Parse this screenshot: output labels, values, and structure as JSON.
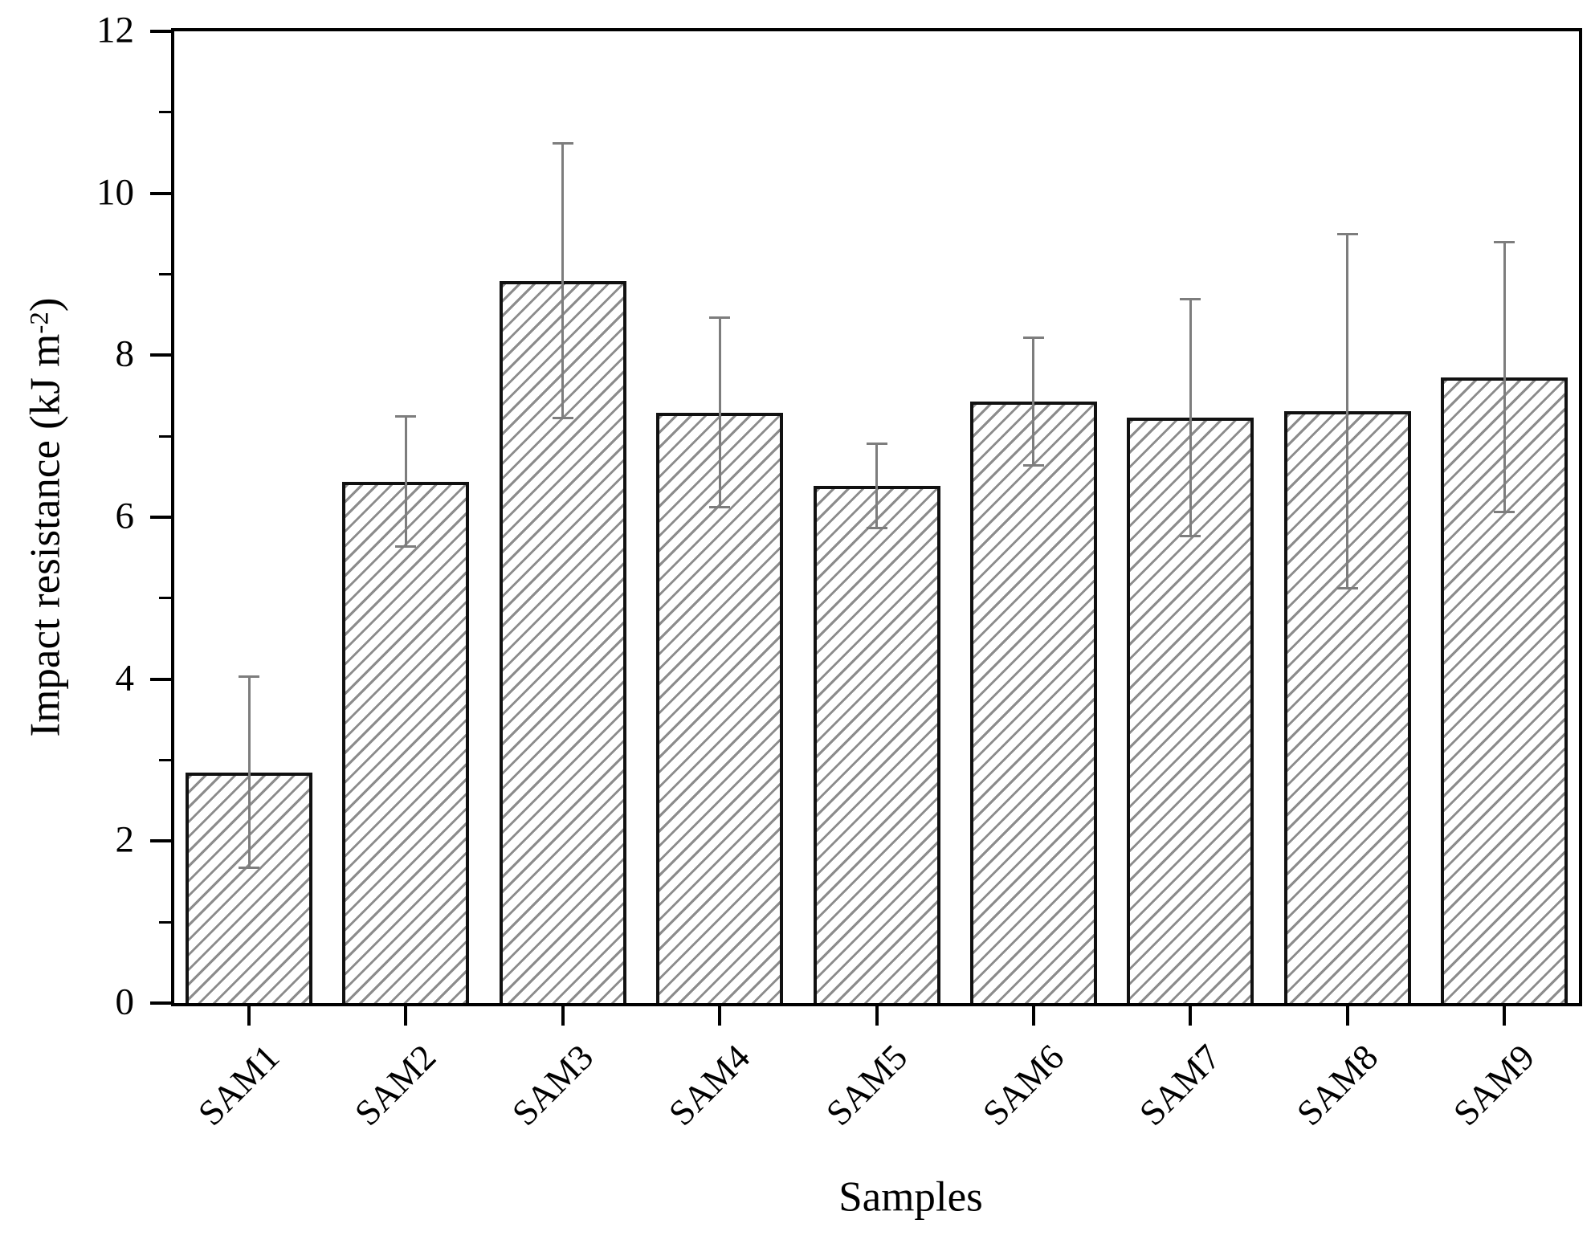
{
  "figure": {
    "background_color": "#ffffff",
    "plot_border_color": "#000000"
  },
  "chart_data": {
    "type": "bar",
    "title": "",
    "xlabel": "Samples",
    "ylabel": "Impact resistance (kJ m⁻²)",
    "ylabel_main": "Impact resistance (kJ m",
    "ylabel_sup": "-2",
    "ylabel_close": ")",
    "categories": [
      "SAM1",
      "SAM2",
      "SAM3",
      "SAM4",
      "SAM5",
      "SAM6",
      "SAM7",
      "SAM8",
      "SAM9"
    ],
    "values": [
      2.85,
      6.44,
      8.92,
      7.29,
      6.39,
      7.43,
      7.23,
      7.31,
      7.73
    ],
    "errors": [
      1.18,
      0.8,
      1.7,
      1.17,
      0.52,
      0.79,
      1.46,
      2.19,
      1.67
    ],
    "error_caps": {
      "upper": [
        4.03,
        7.24,
        10.62,
        8.46,
        6.91,
        8.22,
        8.69,
        9.5,
        9.4
      ],
      "lower": [
        1.67,
        5.64,
        7.22,
        6.12,
        5.87,
        6.64,
        5.77,
        5.12,
        6.06
      ]
    },
    "ylim": [
      0,
      12
    ],
    "y_major_ticks": [
      0,
      2,
      4,
      6,
      8,
      10,
      12
    ],
    "y_minor_ticks": [
      1,
      3,
      5,
      7,
      9,
      11
    ],
    "grid": false,
    "legend": "none",
    "bar_fill": "#ffffff",
    "bar_hatch": "forward-diagonal-lines",
    "hatch_color": "#8c8c8c",
    "bar_edge_color": "#111111",
    "error_bar_color": "#7d7d7d",
    "axis_color": "#000000",
    "text_color": "#000000"
  }
}
